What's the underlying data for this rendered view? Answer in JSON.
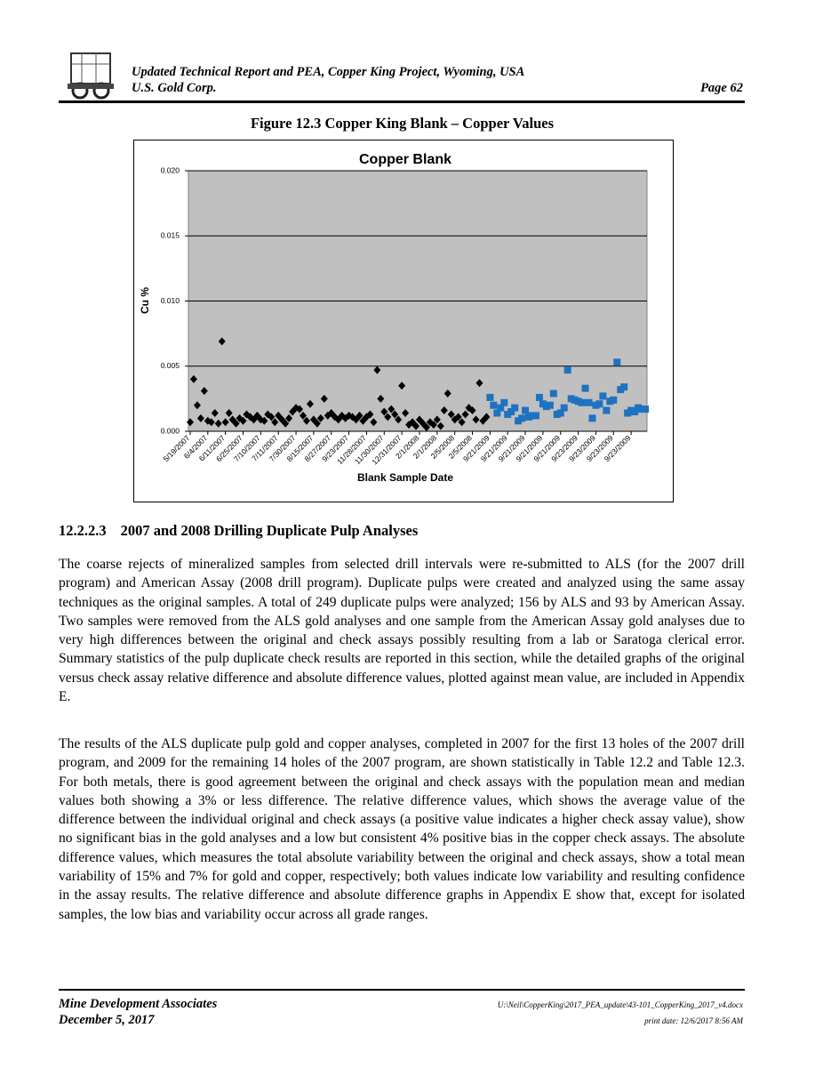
{
  "header": {
    "title": "Updated Technical Report and PEA, Copper King Project, Wyoming, USA",
    "company": "U.S. Gold Corp.",
    "page": "Page 62"
  },
  "figure": {
    "caption": "Figure 12.3 Copper King Blank – Copper Values"
  },
  "chart_data": {
    "type": "scatter",
    "title": "Copper Blank",
    "x_label": "Blank Sample Date",
    "y_label": "Cu %",
    "plot_background": "#c0c0c0",
    "grid": true,
    "ylim": [
      0,
      0.02
    ],
    "yticks": [
      {
        "value": 0,
        "label": "0.000"
      },
      {
        "value": 0.005,
        "label": "0.005"
      },
      {
        "value": 0.01,
        "label": "0.010"
      },
      {
        "value": 0.015,
        "label": "0.015"
      },
      {
        "value": 0.02,
        "label": "0.020"
      }
    ],
    "categories": [
      "5/19/2007",
      null,
      null,
      null,
      null,
      "6/4/2007",
      null,
      null,
      null,
      null,
      "6/11/2007",
      null,
      null,
      null,
      null,
      "6/25/2007",
      null,
      null,
      null,
      null,
      "7/10/2007",
      null,
      null,
      null,
      null,
      "7/11/2007",
      null,
      null,
      null,
      null,
      "7/30/2007",
      null,
      null,
      null,
      null,
      "8/15/2007",
      null,
      null,
      null,
      null,
      "8/27/2007",
      null,
      null,
      null,
      null,
      "9/23/2007",
      null,
      null,
      null,
      null,
      "11/28/2007",
      null,
      null,
      null,
      null,
      "11/30/2007",
      null,
      null,
      null,
      null,
      "12/31/2007",
      null,
      null,
      null,
      null,
      "2/1/2008",
      null,
      null,
      null,
      null,
      "2/1/2008",
      null,
      null,
      null,
      null,
      "2/5/2008",
      null,
      null,
      null,
      null,
      "2/5/2008",
      null,
      null,
      null,
      null,
      "9/21/2009",
      null,
      null,
      null,
      null,
      "9/21/2009",
      null,
      null,
      null,
      null,
      "9/21/2009",
      null,
      null,
      null,
      null,
      "9/21/2009",
      null,
      null,
      null,
      null,
      "9/21/2009",
      null,
      null,
      null,
      null,
      "9/23/2009",
      null,
      null,
      null,
      null,
      "9/23/2009",
      null,
      null,
      null,
      null,
      "9/23/2009",
      null,
      null,
      null,
      null,
      "9/23/2009",
      null,
      null,
      null,
      null
    ],
    "series": [
      {
        "color": "#000000",
        "marker": "diamond",
        "values": [
          0.0007,
          0.004,
          0.002,
          0.001,
          0.0031,
          0.0008,
          0.0007,
          0.0014,
          0.0006,
          0.0069,
          0.0007,
          0.0014,
          0.0009,
          0.0006,
          0.001,
          0.0008,
          0.0013,
          0.0011,
          0.0009,
          0.0012,
          0.0009,
          0.0008,
          0.0013,
          0.0011,
          0.0007,
          0.0012,
          0.0009,
          0.0006,
          0.001,
          0.0015,
          0.0018,
          0.0017,
          0.0012,
          0.0008,
          0.0021,
          0.0009,
          0.0006,
          0.001,
          0.0025,
          0.0012,
          0.0014,
          0.0011,
          0.0009,
          0.0012,
          0.001,
          0.0012,
          0.0011,
          0.0009,
          0.0012,
          0.0008,
          0.0011,
          0.0013,
          0.0007,
          0.0047,
          0.0025,
          0.0015,
          0.0011,
          0.0017,
          0.0013,
          0.0009,
          0.0035,
          0.0014,
          0.0005,
          0.0007,
          0.0004,
          0.0009,
          0.0006,
          0.0003,
          0.0007,
          0.0005,
          0.0009,
          0.0004,
          0.0016,
          0.0029,
          0.0013,
          0.0009,
          0.0011,
          0.0007,
          0.0013,
          0.0018,
          0.0016,
          0.0009,
          0.0037,
          0.0008,
          0.0011,
          null,
          null,
          null,
          null,
          null,
          null,
          null,
          null,
          null,
          null,
          null,
          null,
          null,
          null,
          null,
          null,
          null,
          null,
          null,
          null,
          null,
          null,
          null,
          null,
          null,
          null,
          null,
          null,
          null,
          null,
          null,
          null,
          null,
          null,
          null,
          null,
          null,
          null,
          null,
          null,
          null,
          null,
          null,
          null,
          null
        ]
      },
      {
        "color": "#1f72c0",
        "marker": "square",
        "values": [
          null,
          null,
          null,
          null,
          null,
          null,
          null,
          null,
          null,
          null,
          null,
          null,
          null,
          null,
          null,
          null,
          null,
          null,
          null,
          null,
          null,
          null,
          null,
          null,
          null,
          null,
          null,
          null,
          null,
          null,
          null,
          null,
          null,
          null,
          null,
          null,
          null,
          null,
          null,
          null,
          null,
          null,
          null,
          null,
          null,
          null,
          null,
          null,
          null,
          null,
          null,
          null,
          null,
          null,
          null,
          null,
          null,
          null,
          null,
          null,
          null,
          null,
          null,
          null,
          null,
          null,
          null,
          null,
          null,
          null,
          null,
          null,
          null,
          null,
          null,
          null,
          null,
          null,
          null,
          null,
          null,
          null,
          null,
          null,
          null,
          0.0026,
          0.002,
          0.0014,
          0.0018,
          0.0022,
          0.0013,
          0.0015,
          0.0018,
          0.0008,
          0.001,
          0.0016,
          0.0011,
          0.0012,
          0.0012,
          0.0026,
          0.0021,
          0.0019,
          0.002,
          0.0029,
          0.0013,
          0.0014,
          0.0018,
          0.0047,
          0.0025,
          0.0024,
          0.0023,
          0.0022,
          0.0033,
          0.0022,
          0.001,
          0.002,
          0.0021,
          0.0027,
          0.0016,
          0.0023,
          0.0024,
          0.0053,
          0.0032,
          0.0034,
          0.0014,
          0.0016,
          0.0015,
          0.0018,
          0.0017,
          0.0017
        ]
      }
    ]
  },
  "section": {
    "number": "12.2.2.3",
    "title": "2007 and 2008 Drilling Duplicate Pulp Analyses"
  },
  "paragraphs": [
    "The coarse rejects of mineralized samples from selected drill intervals were re-submitted to ALS (for the 2007 drill program) and American Assay (2008 drill program).  Duplicate pulps were created and analyzed using the same assay techniques as the original samples.  A total of 249 duplicate pulps were analyzed; 156 by ALS and 93 by American Assay.  Two samples were removed from the ALS gold analyses and one sample from the American Assay gold analyses due to very high differences between the original and check assays possibly resulting from a lab or Saratoga clerical error.  Summary statistics of the pulp duplicate check results are reported in this section, while the detailed graphs of the original versus check assay relative difference and absolute difference values, plotted against mean value, are included in Appendix E.",
    "The results of the ALS duplicate pulp gold and copper analyses, completed in 2007 for the first 13 holes of the 2007 drill program, and 2009 for the remaining 14 holes of the 2007 program, are shown statistically in Table 12.2 and Table 12.3.  For both metals, there is good agreement between the original and check assays with the population mean and median values both showing a 3% or less difference.  The relative difference values, which shows the average value of the difference between the individual original and check assays (a positive value indicates a higher check assay value), show no significant bias in the gold analyses and a low but consistent 4%  positive bias in the copper check assays.  The absolute difference values, which measures the total absolute variability between the original and check assays, show a total mean variability of 15% and 7% for gold and copper, respectively; both values indicate low variability and resulting confidence in the assay results.  The relative difference and absolute difference graphs in Appendix E show that, except for isolated samples, the low bias and variability occur across all grade ranges."
  ],
  "footer": {
    "company": "Mine Development Associates",
    "date": "December 5, 2017",
    "file": "U:\\Neil\\CopperKing\\2017_PEA_update\\43-101_CopperKing_2017_v4.docx",
    "print_date": "print date: 12/6/2017 8:56 AM"
  }
}
